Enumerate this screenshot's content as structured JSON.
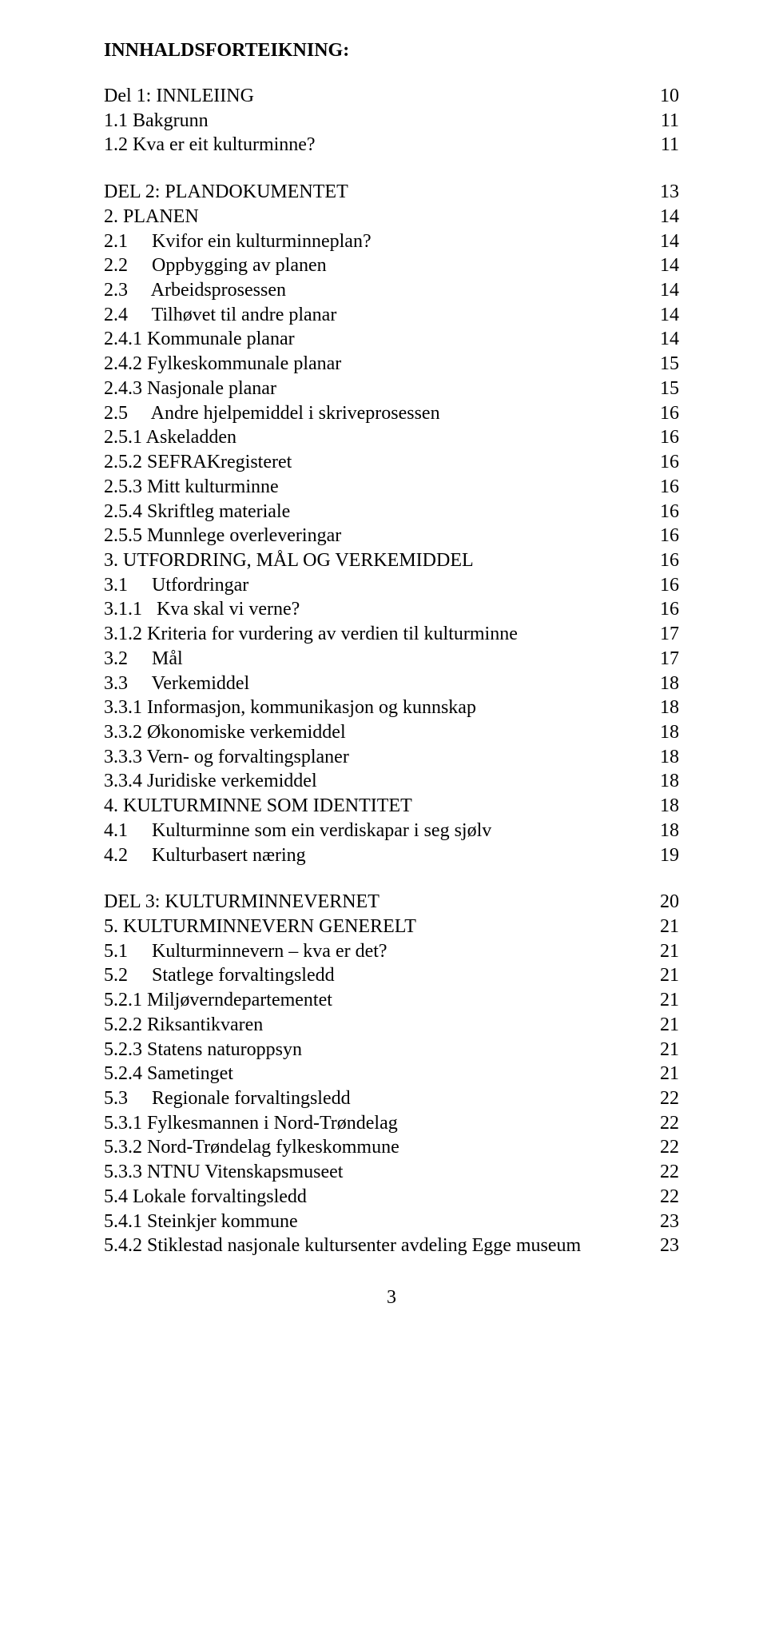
{
  "title": "INNHALDSFORTEIKNING:",
  "pageNumber": "3",
  "entries": [
    {
      "label": "Del 1: INNLEIING",
      "page": "10",
      "gapBefore": false
    },
    {
      "label": "1.1 Bakgrunn",
      "page": "11",
      "gapBefore": false
    },
    {
      "label": "1.2 Kva er eit kulturminne?",
      "page": "11",
      "gapBefore": false
    },
    {
      "label": "DEL 2: PLANDOKUMENTET",
      "page": "13",
      "gapBefore": true
    },
    {
      "label": "2. PLANEN",
      "page": "14",
      "gapBefore": false
    },
    {
      "label": "2.1     Kvifor ein kulturminneplan?",
      "page": "14",
      "gapBefore": false
    },
    {
      "label": "2.2     Oppbygging av planen",
      "page": "14",
      "gapBefore": false
    },
    {
      "label": "2.3     Arbeidsprosessen",
      "page": "14",
      "gapBefore": false
    },
    {
      "label": "2.4     Tilhøvet til andre planar",
      "page": "14",
      "gapBefore": false
    },
    {
      "label": "2.4.1 Kommunale planar",
      "page": "14",
      "gapBefore": false
    },
    {
      "label": "2.4.2 Fylkeskommunale planar",
      "page": "15",
      "gapBefore": false
    },
    {
      "label": "2.4.3 Nasjonale planar",
      "page": "15",
      "gapBefore": false
    },
    {
      "label": "2.5     Andre hjelpemiddel i skriveprosessen",
      "page": "16",
      "gapBefore": false
    },
    {
      "label": "2.5.1 Askeladden",
      "page": "16",
      "gapBefore": false
    },
    {
      "label": "2.5.2 SEFRAKregisteret",
      "page": "16",
      "gapBefore": false
    },
    {
      "label": "2.5.3 Mitt kulturminne",
      "page": "16",
      "gapBefore": false
    },
    {
      "label": "2.5.4 Skriftleg materiale",
      "page": "16",
      "gapBefore": false
    },
    {
      "label": "2.5.5 Munnlege overleveringar",
      "page": "16",
      "gapBefore": false
    },
    {
      "label": "3. UTFORDRING, MÅL OG VERKEMIDDEL",
      "page": "16",
      "gapBefore": false
    },
    {
      "label": "3.1     Utfordringar",
      "page": "16",
      "gapBefore": false
    },
    {
      "label": "3.1.1   Kva skal vi verne?",
      "page": "16",
      "gapBefore": false
    },
    {
      "label": "3.1.2 Kriteria for vurdering av verdien til kulturminne",
      "page": "17",
      "gapBefore": false
    },
    {
      "label": "3.2     Mål",
      "page": "17",
      "gapBefore": false
    },
    {
      "label": "3.3     Verkemiddel",
      "page": "18",
      "gapBefore": false
    },
    {
      "label": "3.3.1 Informasjon, kommunikasjon og kunnskap",
      "page": "18",
      "gapBefore": false
    },
    {
      "label": "3.3.2 Økonomiske verkemiddel",
      "page": "18",
      "gapBefore": false
    },
    {
      "label": "3.3.3 Vern- og forvaltingsplaner",
      "page": "18",
      "gapBefore": false
    },
    {
      "label": "3.3.4 Juridiske verkemiddel",
      "page": "18",
      "gapBefore": false
    },
    {
      "label": "4. KULTURMINNE SOM IDENTITET",
      "page": "18",
      "gapBefore": false
    },
    {
      "label": "4.1     Kulturminne som ein verdiskapar i seg sjølv",
      "page": "18",
      "gapBefore": false
    },
    {
      "label": "4.2     Kulturbasert næring",
      "page": "19",
      "gapBefore": false
    },
    {
      "label": "DEL 3: KULTURMINNEVERNET",
      "page": "20",
      "gapBefore": true
    },
    {
      "label": "5. KULTURMINNEVERN GENERELT",
      "page": "21",
      "gapBefore": false
    },
    {
      "label": "5.1     Kulturminnevern – kva er det?",
      "page": "21",
      "gapBefore": false
    },
    {
      "label": "5.2     Statlege forvaltingsledd",
      "page": "21",
      "gapBefore": false
    },
    {
      "label": "5.2.1 Miljøverndepartementet",
      "page": "21",
      "gapBefore": false
    },
    {
      "label": "5.2.2 Riksantikvaren",
      "page": "21",
      "gapBefore": false
    },
    {
      "label": "5.2.3 Statens naturoppsyn",
      "page": "21",
      "gapBefore": false
    },
    {
      "label": "5.2.4 Sametinget",
      "page": "21",
      "gapBefore": false
    },
    {
      "label": "5.3     Regionale forvaltingsledd",
      "page": "22",
      "gapBefore": false
    },
    {
      "label": "5.3.1 Fylkesmannen i Nord-Trøndelag",
      "page": "22",
      "gapBefore": false
    },
    {
      "label": "5.3.2 Nord-Trøndelag fylkeskommune",
      "page": "22",
      "gapBefore": false
    },
    {
      "label": "5.3.3 NTNU Vitenskapsmuseet",
      "page": "22",
      "gapBefore": false
    },
    {
      "label": "5.4 Lokale forvaltingsledd",
      "page": "22",
      "gapBefore": false
    },
    {
      "label": "5.4.1 Steinkjer kommune",
      "page": "23",
      "gapBefore": false
    },
    {
      "label": "5.4.2 Stiklestad nasjonale kultursenter avdeling Egge museum",
      "page": "23",
      "gapBefore": false
    }
  ]
}
